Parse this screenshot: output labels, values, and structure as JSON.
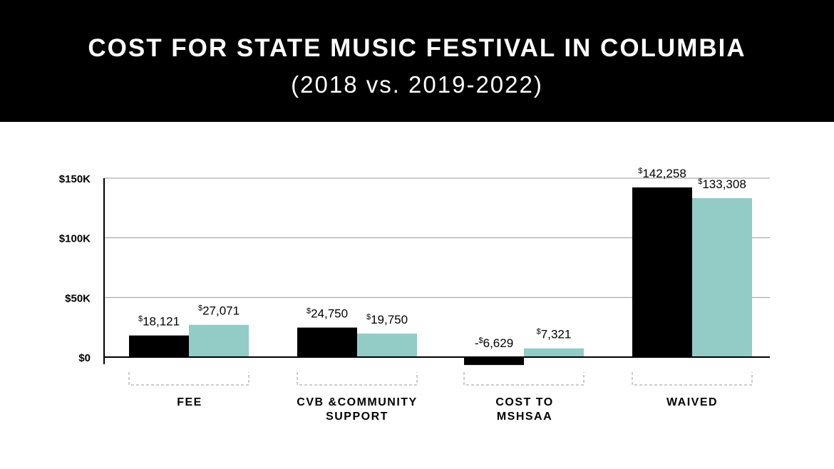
{
  "header": {
    "title": "COST FOR STATE MUSIC FESTIVAL IN COLUMBIA",
    "subtitle": "(2018 vs. 2019-2022)"
  },
  "colors": {
    "header_bg": "#000000",
    "series_2018": "#000000",
    "series_2019_2022": "#93ccc6",
    "grid": "#9a9a9a",
    "bracket": "#9a9a9a"
  },
  "chart_data": {
    "type": "bar",
    "title": "COST FOR STATE MUSIC FESTIVAL IN COLUMBIA",
    "subtitle": "(2018 vs. 2019-2022)",
    "categories": [
      "FEE",
      "CVB &COMMUNITY SUPPORT",
      "COST TO MSHSAA",
      "WAIVED"
    ],
    "category_lines": [
      [
        "FEE"
      ],
      [
        "CVB &COMMUNITY",
        "SUPPORT"
      ],
      [
        "COST TO",
        "MSHSAA"
      ],
      [
        "WAIVED"
      ]
    ],
    "series": [
      {
        "values": [
          18121,
          24750,
          -6629,
          142258
        ],
        "labels": [
          "$18,121",
          "$24,750",
          "-$6,629",
          "$142,258"
        ],
        "color": "#000000"
      },
      {
        "values": [
          27071,
          19750,
          7321,
          133308
        ],
        "labels": [
          "$27,071",
          "$19,750",
          "$7,321",
          "$133,308"
        ],
        "color": "#93ccc6"
      }
    ],
    "yticks": [
      0,
      50000,
      100000,
      150000
    ],
    "ytick_labels": [
      "$0",
      "$50K",
      "$100K",
      "$150K"
    ],
    "ylim": [
      -6629,
      150000
    ],
    "grid": true,
    "legend": "none"
  }
}
